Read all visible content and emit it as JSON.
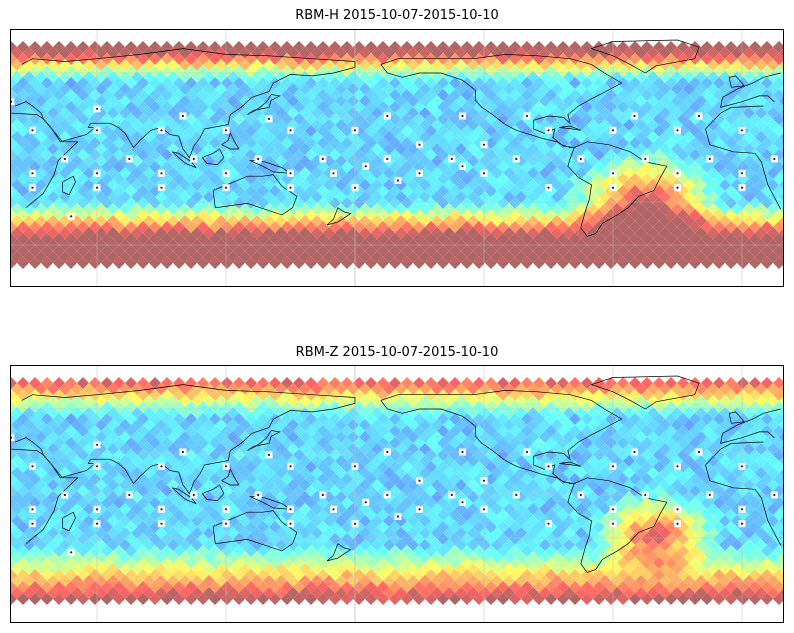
{
  "panels": [
    {
      "id": "rbm-h",
      "title": "RBM-H 2015-10-07-2015-10-10",
      "intensity": "high"
    },
    {
      "id": "rbm-z",
      "title": "RBM-Z 2015-10-07-2015-10-10",
      "intensity": "moderate"
    }
  ],
  "map": {
    "projection": "plate-carree",
    "colormap": "jet",
    "colormap_alpha": 0.6,
    "land_color": "#ffffff",
    "coastline_color": "#000000",
    "gridline_color": "#bdbdbd",
    "station_marker": "white-square"
  }
}
